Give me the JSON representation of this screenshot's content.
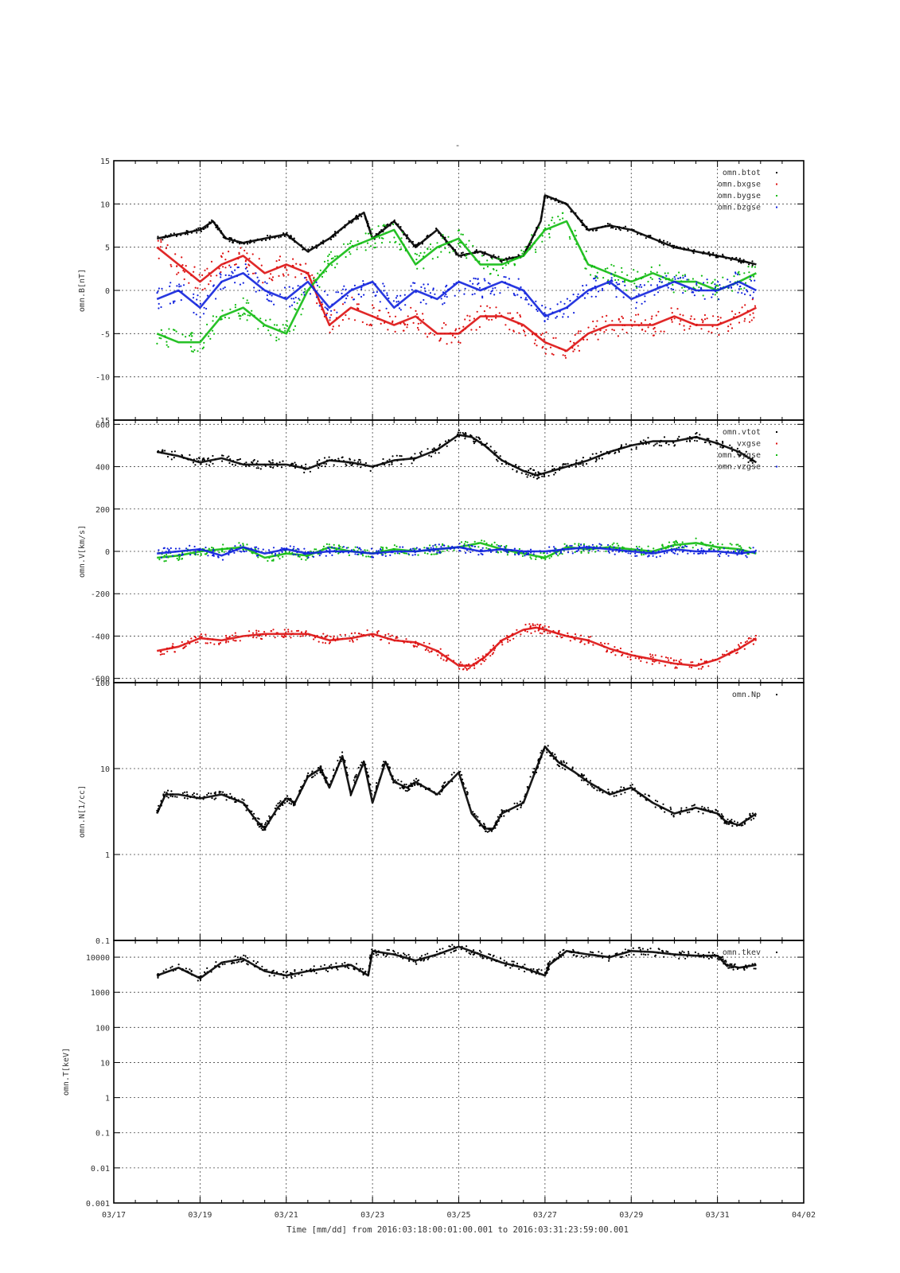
{
  "title": "-",
  "footer": {
    "xlabel": "Time [mm/dd]  from 2016:03:18:00:01:00.001  to  2016:03:31:23:59:00.001"
  },
  "time_axis": {
    "tick_labels": [
      "03/17",
      "03/19",
      "03/21",
      "03/23",
      "03/25",
      "03/27",
      "03/29",
      "03/31",
      "04/02"
    ],
    "tick_days": [
      0,
      2,
      4,
      6,
      8,
      10,
      12,
      14,
      16
    ],
    "range_days": [
      0,
      16
    ]
  },
  "chart_data": [
    {
      "type": "scatter",
      "ylabel": "omn.B[nT]",
      "yscale": "linear",
      "ylim": [
        -15,
        15
      ],
      "yticks": [
        -15,
        -10,
        -5,
        0,
        5,
        10,
        15
      ],
      "ytick_labels": [
        "-15",
        "-10",
        "-5",
        "0",
        "5",
        "10",
        "15"
      ],
      "grid": true,
      "legend_position": "top-right",
      "series": [
        {
          "name": "omn.btot",
          "color": "#000000",
          "x": [
            1.0,
            1.5,
            2.0,
            2.3,
            2.6,
            3.0,
            3.5,
            4.0,
            4.5,
            5.0,
            5.5,
            5.8,
            6.0,
            6.5,
            7.0,
            7.5,
            8.0,
            8.5,
            9.0,
            9.5,
            9.9,
            10.0,
            10.5,
            11.0,
            11.5,
            12.0,
            12.5,
            13.0,
            13.5,
            14.0,
            14.5,
            14.9
          ],
          "y": [
            6,
            6.5,
            7,
            8,
            6,
            5.5,
            6,
            6.5,
            4.5,
            6,
            8,
            9,
            6,
            8,
            5,
            7,
            4,
            4.5,
            3.5,
            4,
            8,
            11,
            10,
            7,
            7.5,
            7,
            6,
            5,
            4.5,
            4,
            3.5,
            3
          ]
        },
        {
          "name": "omn.bxgse",
          "color": "#dd1111",
          "x": [
            1.0,
            1.5,
            2.0,
            2.5,
            3.0,
            3.5,
            4.0,
            4.5,
            5.0,
            5.5,
            6.0,
            6.5,
            7.0,
            7.5,
            8.0,
            8.5,
            9.0,
            9.5,
            10.0,
            10.5,
            11.0,
            11.5,
            12.0,
            12.5,
            13.0,
            13.5,
            14.0,
            14.5,
            14.9
          ],
          "y": [
            5,
            3,
            1,
            3,
            4,
            2,
            3,
            2,
            -4,
            -2,
            -3,
            -4,
            -3,
            -5,
            -5,
            -3,
            -3,
            -4,
            -6,
            -7,
            -5,
            -4,
            -4,
            -4,
            -3,
            -4,
            -4,
            -3,
            -2
          ]
        },
        {
          "name": "omn.bygse",
          "color": "#11bb11",
          "x": [
            1.0,
            1.5,
            2.0,
            2.5,
            3.0,
            3.5,
            4.0,
            4.5,
            5.0,
            5.5,
            6.0,
            6.5,
            7.0,
            7.5,
            8.0,
            8.5,
            9.0,
            9.5,
            10.0,
            10.5,
            11.0,
            11.5,
            12.0,
            12.5,
            13.0,
            13.5,
            14.0,
            14.5,
            14.9
          ],
          "y": [
            -5,
            -6,
            -6,
            -3,
            -2,
            -4,
            -5,
            0,
            3,
            5,
            6,
            7,
            3,
            5,
            6,
            3,
            3,
            4,
            7,
            8,
            3,
            2,
            1,
            2,
            1,
            1,
            0,
            1,
            2
          ]
        },
        {
          "name": "omn.bzgse",
          "color": "#1122dd",
          "x": [
            1.0,
            1.5,
            2.0,
            2.5,
            3.0,
            3.5,
            4.0,
            4.5,
            5.0,
            5.5,
            6.0,
            6.5,
            7.0,
            7.5,
            8.0,
            8.5,
            9.0,
            9.5,
            10.0,
            10.5,
            11.0,
            11.5,
            12.0,
            12.5,
            13.0,
            13.5,
            14.0,
            14.5,
            14.9
          ],
          "y": [
            -1,
            0,
            -2,
            1,
            2,
            0,
            -1,
            1,
            -2,
            0,
            1,
            -2,
            0,
            -1,
            1,
            0,
            1,
            0,
            -3,
            -2,
            0,
            1,
            -1,
            0,
            1,
            0,
            0,
            1,
            0
          ]
        }
      ]
    },
    {
      "type": "scatter",
      "ylabel": "omn.V[km/s]",
      "yscale": "linear",
      "ylim": [
        -620,
        620
      ],
      "yticks": [
        -600,
        -400,
        -200,
        0,
        200,
        400,
        600
      ],
      "ytick_labels": [
        "-600",
        "-400",
        "-200",
        "0",
        "200",
        "400",
        "600"
      ],
      "grid": true,
      "legend_position": "top-right",
      "series": [
        {
          "name": "omn.vtot",
          "color": "#000000",
          "x": [
            1.0,
            1.5,
            2.0,
            2.5,
            3.0,
            3.5,
            4.0,
            4.5,
            5.0,
            5.5,
            6.0,
            6.5,
            7.0,
            7.5,
            8.0,
            8.3,
            8.6,
            9.0,
            9.5,
            9.8,
            10.0,
            10.5,
            11.0,
            11.5,
            12.0,
            12.5,
            13.0,
            13.5,
            14.0,
            14.5,
            14.9
          ],
          "y": [
            470,
            450,
            420,
            440,
            410,
            410,
            410,
            390,
            430,
            420,
            400,
            430,
            440,
            480,
            550,
            540,
            500,
            430,
            380,
            360,
            370,
            400,
            430,
            470,
            500,
            520,
            520,
            540,
            510,
            470,
            420
          ]
        },
        {
          "name": "vxgse",
          "color": "#dd1111",
          "x": [
            1.0,
            1.5,
            2.0,
            2.5,
            3.0,
            3.5,
            4.0,
            4.5,
            5.0,
            5.5,
            6.0,
            6.5,
            7.0,
            7.5,
            8.0,
            8.3,
            8.6,
            9.0,
            9.5,
            9.8,
            10.0,
            10.5,
            11.0,
            11.5,
            12.0,
            12.5,
            13.0,
            13.5,
            14.0,
            14.5,
            14.9
          ],
          "y": [
            -470,
            -450,
            -410,
            -420,
            -400,
            -390,
            -390,
            -390,
            -420,
            -410,
            -390,
            -420,
            -430,
            -470,
            -540,
            -540,
            -500,
            -420,
            -370,
            -360,
            -370,
            -400,
            -420,
            -460,
            -490,
            -510,
            -530,
            -540,
            -510,
            -460,
            -410
          ]
        },
        {
          "name": "omn.vygse",
          "color": "#11bb11",
          "x": [
            1.0,
            1.5,
            2.0,
            2.5,
            3.0,
            3.5,
            4.0,
            4.5,
            5.0,
            5.5,
            6.0,
            6.5,
            7.0,
            7.5,
            8.0,
            8.5,
            9.0,
            9.5,
            10.0,
            10.5,
            11.0,
            11.5,
            12.0,
            12.5,
            13.0,
            13.5,
            14.0,
            14.5,
            14.9
          ],
          "y": [
            -30,
            -20,
            0,
            10,
            20,
            -30,
            -10,
            -20,
            20,
            0,
            -10,
            10,
            0,
            10,
            20,
            40,
            10,
            -10,
            -30,
            20,
            10,
            20,
            10,
            0,
            30,
            40,
            20,
            10,
            -10
          ]
        },
        {
          "name": "omn.vzgse",
          "color": "#1122dd",
          "x": [
            1.0,
            1.5,
            2.0,
            2.5,
            3.0,
            3.5,
            4.0,
            4.5,
            5.0,
            5.5,
            6.0,
            6.5,
            7.0,
            7.5,
            8.0,
            8.5,
            9.0,
            9.5,
            10.0,
            10.5,
            11.0,
            11.5,
            12.0,
            12.5,
            13.0,
            13.5,
            14.0,
            14.5,
            14.9
          ],
          "y": [
            -10,
            0,
            10,
            -20,
            20,
            -10,
            10,
            -10,
            0,
            0,
            -10,
            0,
            0,
            10,
            20,
            0,
            10,
            0,
            0,
            10,
            20,
            10,
            0,
            -10,
            10,
            0,
            0,
            -10,
            0
          ]
        }
      ]
    },
    {
      "type": "scatter",
      "ylabel": "omn.N[1/cc]",
      "yscale": "log",
      "ylim": [
        0.1,
        100
      ],
      "yticks": [
        0.1,
        1,
        10,
        100
      ],
      "ytick_labels": [
        "0.1",
        "1",
        "10",
        "100"
      ],
      "grid": true,
      "legend_position": "top-right",
      "series": [
        {
          "name": "omn.Np",
          "color": "#000000",
          "x": [
            1.0,
            1.2,
            1.5,
            2.0,
            2.5,
            3.0,
            3.3,
            3.5,
            3.8,
            4.0,
            4.2,
            4.5,
            4.8,
            5.0,
            5.3,
            5.5,
            5.8,
            6.0,
            6.3,
            6.5,
            6.8,
            7.0,
            7.5,
            8.0,
            8.3,
            8.6,
            8.8,
            9.0,
            9.5,
            9.8,
            10.0,
            10.3,
            10.7,
            11.0,
            11.5,
            12.0,
            12.5,
            13.0,
            13.5,
            14.0,
            14.2,
            14.5,
            14.9
          ],
          "y": [
            3,
            5,
            5,
            4.5,
            5,
            4,
            2.5,
            2,
            3.5,
            4.5,
            4,
            8,
            10,
            6,
            14,
            5,
            12,
            4,
            12,
            7,
            6,
            7,
            5,
            9,
            3,
            2,
            2,
            3,
            4,
            10,
            18,
            12,
            9,
            7,
            5,
            6,
            4,
            3,
            3.5,
            3,
            2.4,
            2.2,
            3
          ]
        }
      ]
    },
    {
      "type": "scatter",
      "ylabel": "omn.T[keV]",
      "yscale": "log",
      "ylim": [
        0.001,
        30000
      ],
      "yticks": [
        0.001,
        0.01,
        0.1,
        1,
        10,
        100,
        1000,
        10000
      ],
      "ytick_labels": [
        "0.001",
        "0.01",
        "0.1",
        "1",
        "10",
        "100",
        "1000",
        "10000"
      ],
      "grid": true,
      "legend_position": "top-right",
      "series": [
        {
          "name": "omn.tkev",
          "color": "#000000",
          "x": [
            1.0,
            1.5,
            2.0,
            2.5,
            3.0,
            3.5,
            4.0,
            4.5,
            5.0,
            5.5,
            5.9,
            6.0,
            6.5,
            7.0,
            7.5,
            8.0,
            8.5,
            9.0,
            9.5,
            10.0,
            10.1,
            10.5,
            11.0,
            11.5,
            12.0,
            12.5,
            13.0,
            13.5,
            14.0,
            14.2,
            14.5,
            14.9
          ],
          "y": [
            3000,
            5000,
            2500,
            7000,
            9000,
            4000,
            3000,
            4000,
            5000,
            6000,
            3000,
            15000,
            12000,
            8000,
            12000,
            20000,
            12000,
            7000,
            5000,
            3000,
            6000,
            15000,
            12000,
            10000,
            15000,
            14000,
            12000,
            11000,
            11000,
            6000,
            5000,
            6000
          ]
        }
      ]
    }
  ]
}
